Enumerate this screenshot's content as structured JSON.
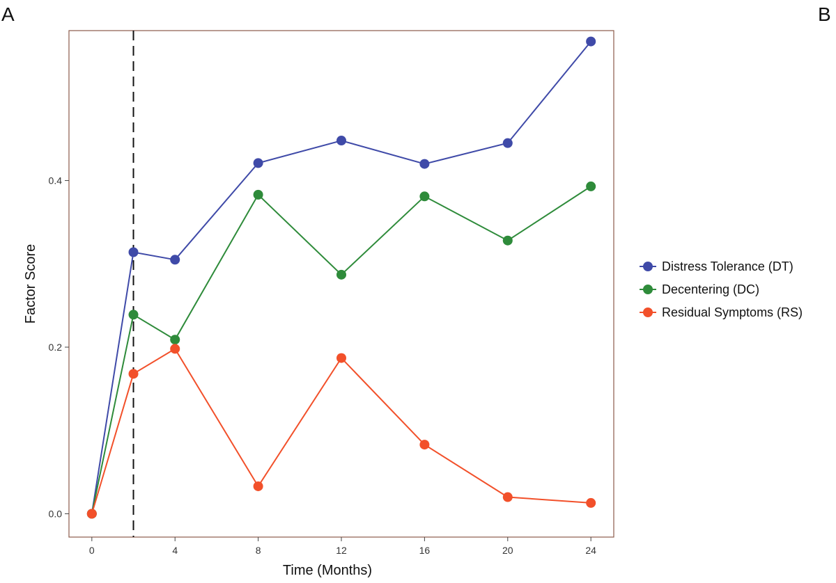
{
  "panels": {
    "left": "A",
    "right": "B"
  },
  "chart_data": {
    "type": "line",
    "title": "",
    "xlabel": "Time (Months)",
    "ylabel": "Factor Score",
    "x": [
      0,
      2,
      4,
      8,
      12,
      16,
      20,
      24
    ],
    "xticks": [
      0,
      4,
      8,
      12,
      16,
      20,
      24
    ],
    "xtick_labels": [
      "0",
      "4",
      "8",
      "12",
      "16",
      "20",
      "24"
    ],
    "yticks": [
      0.0,
      0.2,
      0.4
    ],
    "ytick_labels": [
      "0.0",
      "0.2",
      "0.4"
    ],
    "xlim": [
      -1.1,
      25.1
    ],
    "ylim": [
      -0.028,
      0.58
    ],
    "reference_line_x": 2,
    "grid": false,
    "legend_position": "right",
    "series": [
      {
        "name": "Distress Tolerance (DT)",
        "color": "#3f4aa8",
        "values": [
          0.0,
          0.314,
          0.305,
          0.421,
          0.448,
          0.42,
          0.445,
          0.567
        ]
      },
      {
        "name": "Decentering (DC)",
        "color": "#2e8b3a",
        "values": [
          0.0,
          0.239,
          0.209,
          0.383,
          0.287,
          0.381,
          0.328,
          0.393
        ]
      },
      {
        "name": "Residual Symptoms (RS)",
        "color": "#f2502a",
        "values": [
          0.0,
          0.168,
          0.198,
          0.033,
          0.187,
          0.083,
          0.02,
          0.013
        ]
      }
    ]
  }
}
